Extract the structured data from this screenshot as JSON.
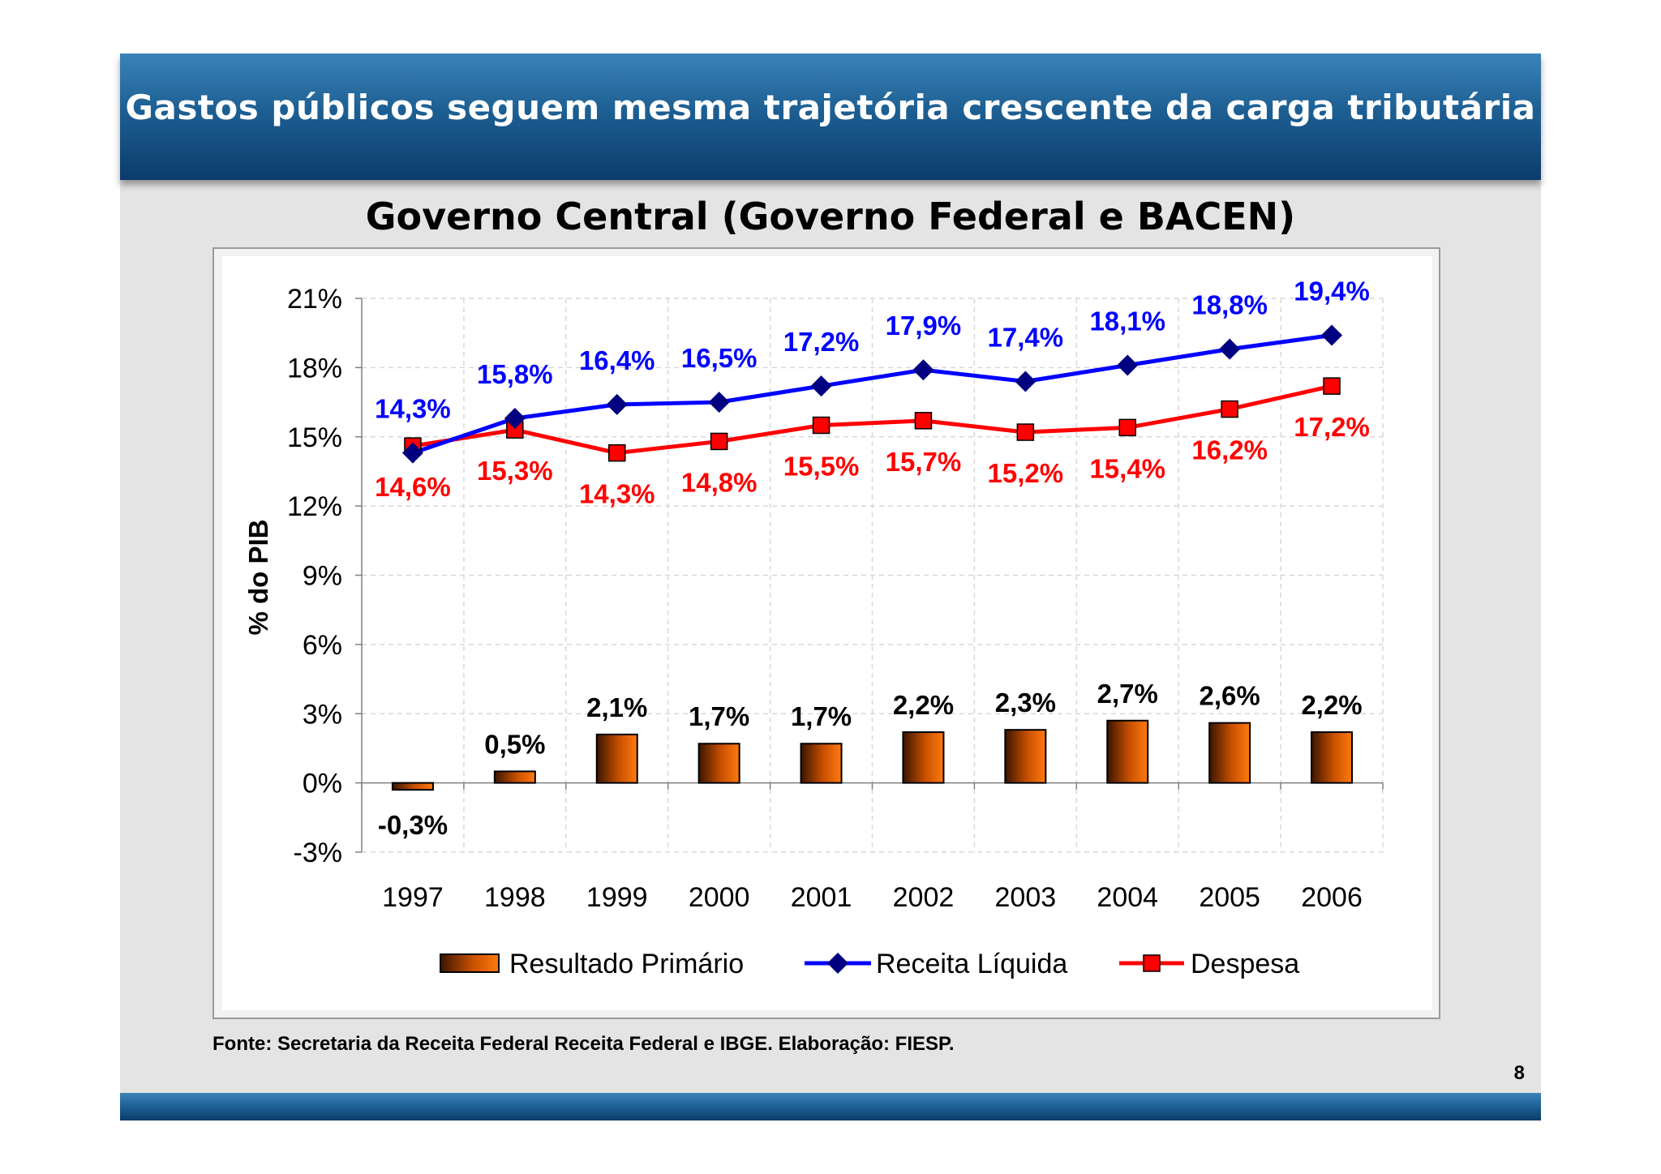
{
  "slide": {
    "title": "Gastos públicos seguem mesma trajetória crescente da carga tributária",
    "source": "Fonte: Secretaria da Receita Federal Receita Federal e IBGE. Elaboração: FIESP.",
    "page_number": "8"
  },
  "colors": {
    "header": "#1d5f93",
    "receita": "#0000ff",
    "receita_line": "#0000ff",
    "receita_marker": "#000080",
    "despesa": "#ff0000",
    "despesa_line": "#ff0000",
    "bar_dark": "#3a1500",
    "bar_light": "#ff7a10"
  },
  "chart_data": {
    "type": "bar",
    "title": "Governo Central (Governo Federal e BACEN)",
    "ylabel": "% do PIB",
    "xlabel": "",
    "ylim": [
      -3,
      21
    ],
    "y_ticks": [
      -3,
      0,
      3,
      6,
      9,
      12,
      15,
      18,
      21
    ],
    "y_tick_labels": [
      "-3%",
      "0%",
      "3%",
      "6%",
      "9%",
      "12%",
      "15%",
      "18%",
      "21%"
    ],
    "categories": [
      "1997",
      "1998",
      "1999",
      "2000",
      "2001",
      "2002",
      "2003",
      "2004",
      "2005",
      "2006"
    ],
    "grid": true,
    "legend_position": "bottom",
    "series": [
      {
        "name": "Resultado Primário",
        "type": "bar",
        "values": [
          -0.3,
          0.5,
          2.1,
          1.7,
          1.7,
          2.2,
          2.3,
          2.7,
          2.6,
          2.2
        ],
        "labels": [
          "-0,3%",
          "0,5%",
          "2,1%",
          "1,7%",
          "1,7%",
          "2,2%",
          "2,3%",
          "2,7%",
          "2,6%",
          "2,2%"
        ]
      },
      {
        "name": "Receita Líquida",
        "type": "line",
        "marker": "diamond",
        "values": [
          14.3,
          15.8,
          16.4,
          16.5,
          17.2,
          17.9,
          17.4,
          18.1,
          18.8,
          19.4
        ],
        "labels": [
          "14,3%",
          "15,8%",
          "16,4%",
          "16,5%",
          "17,2%",
          "17,9%",
          "17,4%",
          "18,1%",
          "18,8%",
          "19,4%"
        ]
      },
      {
        "name": "Despesa",
        "type": "line",
        "marker": "square",
        "values": [
          14.6,
          15.3,
          14.3,
          14.8,
          15.5,
          15.7,
          15.2,
          15.4,
          16.2,
          17.2
        ],
        "labels": [
          "14,6%",
          "15,3%",
          "14,3%",
          "14,8%",
          "15,5%",
          "15,7%",
          "15,2%",
          "15,4%",
          "16,2%",
          "17,2%"
        ]
      }
    ]
  }
}
